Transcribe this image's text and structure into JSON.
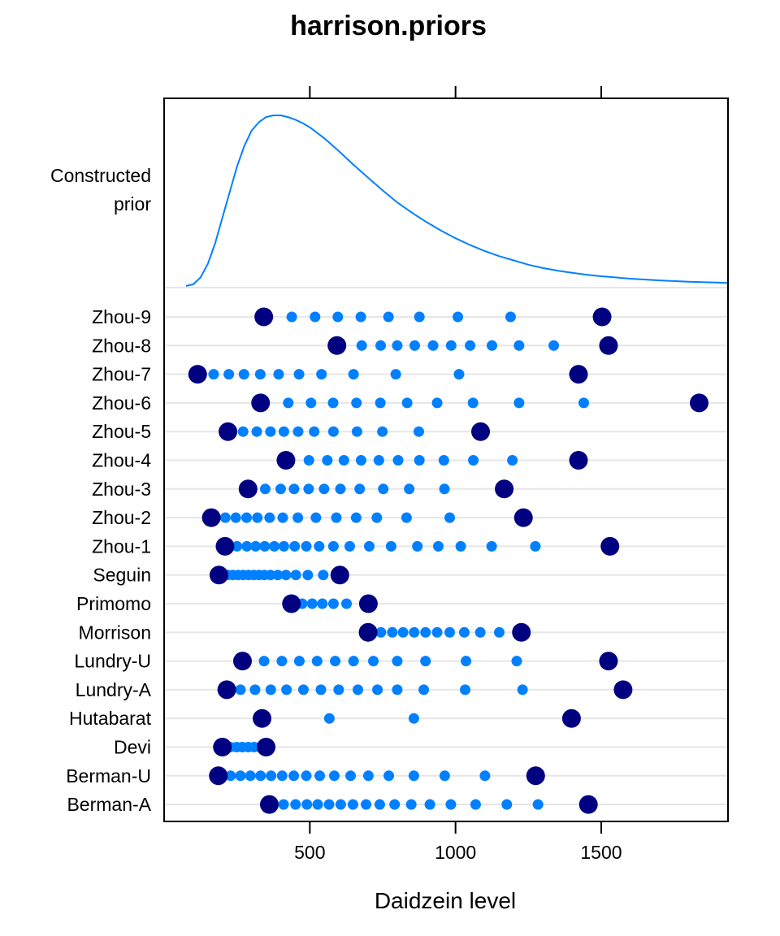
{
  "chart_data": {
    "type": "scatter",
    "title": "harrison.priors",
    "xlabel": "Daidzein level",
    "ylabel": "",
    "xlim": [
      0,
      1935
    ],
    "xticks": [
      500,
      1000,
      1500
    ],
    "xtick_labels": [
      "500",
      "1000",
      "1500"
    ],
    "prior_panel_label": [
      "Constructed",
      "prior"
    ],
    "prior_curve": {
      "x": [
        75,
        100,
        125,
        150,
        175,
        200,
        225,
        250,
        275,
        300,
        325,
        350,
        375,
        400,
        425,
        450,
        475,
        500,
        550,
        600,
        650,
        700,
        750,
        800,
        850,
        900,
        950,
        1000,
        1050,
        1100,
        1150,
        1200,
        1250,
        1300,
        1350,
        1400,
        1450,
        1500,
        1600,
        1700,
        1800,
        1935
      ],
      "y": [
        0.0,
        0.01,
        0.05,
        0.13,
        0.25,
        0.4,
        0.55,
        0.7,
        0.82,
        0.91,
        0.96,
        0.99,
        1.0,
        1.0,
        0.99,
        0.975,
        0.955,
        0.93,
        0.865,
        0.79,
        0.71,
        0.635,
        0.56,
        0.49,
        0.43,
        0.375,
        0.325,
        0.28,
        0.24,
        0.205,
        0.175,
        0.15,
        0.125,
        0.105,
        0.09,
        0.077,
        0.066,
        0.057,
        0.043,
        0.033,
        0.025,
        0.018
      ]
    },
    "studies": [
      {
        "label": "Zhou-9",
        "min": 342,
        "max": 1503,
        "quantiles": [
          438,
          518,
          596,
          675,
          770,
          876,
          1008,
          1189
        ]
      },
      {
        "label": "Zhou-8",
        "min": 593,
        "max": 1525,
        "quantiles": [
          678,
          743,
          800,
          860,
          923,
          985,
          1050,
          1125,
          1218,
          1337
        ]
      },
      {
        "label": "Zhou-7",
        "min": 115,
        "max": 1422,
        "quantiles": [
          170,
          222,
          274,
          330,
          393,
          463,
          540,
          650,
          795,
          1012
        ]
      },
      {
        "label": "Zhou-6",
        "min": 331,
        "max": 1836,
        "quantiles": [
          426,
          504,
          580,
          660,
          742,
          834,
          937,
          1060,
          1218,
          1440
        ]
      },
      {
        "label": "Zhou-5",
        "min": 219,
        "max": 1086,
        "quantiles": [
          271,
          318,
          365,
          411,
          460,
          515,
          581,
          662,
          749,
          874
        ]
      },
      {
        "label": "Zhou-4",
        "min": 418,
        "max": 1422,
        "quantiles": [
          497,
          560,
          617,
          676,
          737,
          803,
          876,
          960,
          1061,
          1195
        ]
      },
      {
        "label": "Zhou-3",
        "min": 288,
        "max": 1167,
        "quantiles": [
          347,
          400,
          446,
          496,
          549,
          605,
          671,
          752,
          841,
          962
        ]
      },
      {
        "label": "Zhou-2",
        "min": 162,
        "max": 1233,
        "quantiles": [
          210,
          246,
          283,
          320,
          362,
          407,
          459,
          521,
          591,
          659,
          730,
          832,
          980
        ]
      },
      {
        "label": "Zhou-1",
        "min": 209,
        "max": 1530,
        "quantiles": [
          250,
          284,
          314,
          345,
          378,
          411,
          448,
          488,
          532,
          581,
          637,
          704,
          779,
          869,
          941,
          1018,
          1124,
          1274
        ]
      },
      {
        "label": "Seguin",
        "min": 188,
        "max": 603,
        "quantiles": [
          218,
          236,
          254,
          272,
          290,
          308,
          326,
          344,
          365,
          390,
          418,
          452,
          493,
          546
        ]
      },
      {
        "label": "Primomo",
        "min": 437,
        "max": 701,
        "quantiles": [
          474,
          508,
          543,
          581,
          626
        ]
      },
      {
        "label": "Morrison",
        "min": 700,
        "max": 1226,
        "quantiles": [
          744,
          783,
          820,
          858,
          897,
          937,
          980,
          1030,
          1085,
          1150
        ]
      },
      {
        "label": "Lundry-U",
        "min": 269,
        "max": 1525,
        "quantiles": [
          343,
          404,
          464,
          525,
          587,
          650,
          718,
          800,
          897,
          1036,
          1210
        ]
      },
      {
        "label": "Lundry-A",
        "min": 215,
        "max": 1575,
        "quantiles": [
          262,
          312,
          366,
          420,
          478,
          538,
          599,
          665,
          732,
          800,
          891,
          1033,
          1230
        ]
      },
      {
        "label": "Hutabarat",
        "min": 336,
        "max": 1398,
        "quantiles": [
          567,
          857
        ]
      },
      {
        "label": "Devi",
        "min": 200,
        "max": 350,
        "quantiles": [
          227,
          249,
          268,
          289,
          309,
          329
        ]
      },
      {
        "label": "Berman-U",
        "min": 186,
        "max": 1275,
        "quantiles": [
          228,
          262,
          296,
          331,
          367,
          405,
          445,
          488,
          534,
          584,
          640,
          701,
          771,
          857,
          963,
          1101
        ]
      },
      {
        "label": "Berman-A",
        "min": 361,
        "max": 1456,
        "quantiles": [
          410,
          451,
          490,
          527,
          566,
          606,
          648,
          693,
          740,
          791,
          848,
          912,
          984,
          1069,
          1176,
          1283
        ]
      }
    ],
    "colors": {
      "endpoint": "#000080",
      "quantile": "#0080ff",
      "curve": "#0080ff",
      "gridline": "#e6e6e6",
      "frame": "#000000"
    },
    "grid": true
  }
}
